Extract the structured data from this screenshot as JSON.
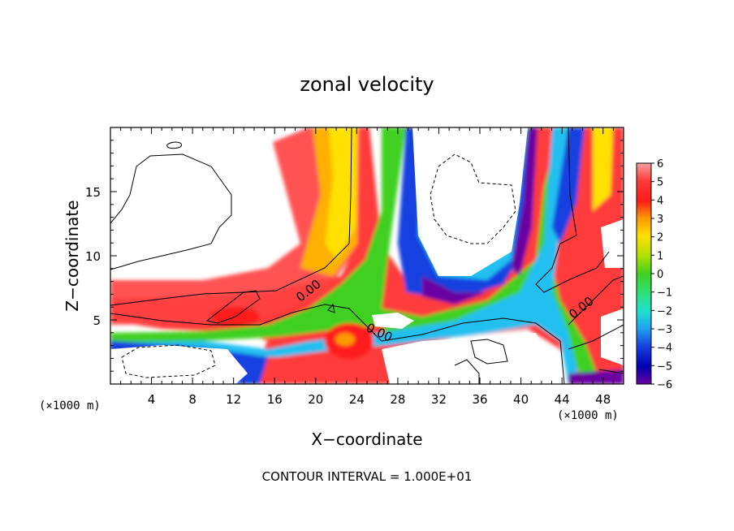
{
  "chart_data": {
    "type": "heatmap",
    "title": "zonal velocity",
    "xlabel": "X−coordinate",
    "ylabel": "Z−coordinate",
    "x_unit_left": "(×1000 m)",
    "x_unit_right": "(×1000 m)",
    "xlim": [
      0,
      50
    ],
    "ylim": [
      0,
      20
    ],
    "x_ticks": [
      4,
      8,
      12,
      16,
      20,
      24,
      28,
      32,
      36,
      40,
      44,
      48
    ],
    "y_ticks": [
      5,
      10,
      15
    ],
    "contour_labels": [
      "0.00",
      "0.00",
      "0.00"
    ],
    "colorbar": {
      "labels": [
        "6",
        "5",
        "4",
        "3",
        "2",
        "1",
        "0",
        "−1",
        "−2",
        "−3",
        "−4",
        "−5",
        "−6"
      ],
      "min": -6,
      "max": 6
    },
    "footer": "CONTOUR INTERVAL = 1.000E+01",
    "colors": {
      "p6": "#f4a0a0",
      "p5": "#ff3a3a",
      "p4": "#ff1a1a",
      "p3": "#ff9a00",
      "p2": "#ffe000",
      "p1": "#b0e000",
      "z0": "#40d020",
      "m1": "#30e070",
      "m2": "#20e0d0",
      "m3": "#20a0f0",
      "m4": "#1840e0",
      "m5": "#0000b0",
      "m6": "#6a00a0"
    }
  }
}
